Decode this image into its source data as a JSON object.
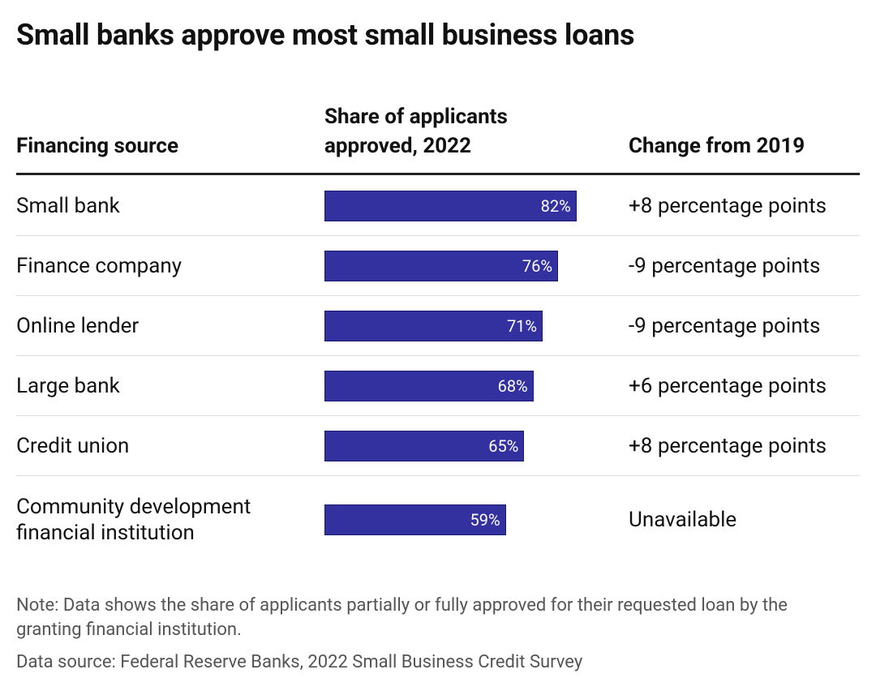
{
  "chart_data": {
    "type": "bar",
    "title": "Small banks approve most small business loans",
    "columns": [
      "Financing source",
      "Share of applicants approved, 2022",
      "Change from 2019"
    ],
    "categories": [
      "Small bank",
      "Finance company",
      "Online lender",
      "Large bank",
      "Credit union",
      "Community development financial institution"
    ],
    "values": [
      82,
      76,
      71,
      68,
      65,
      59
    ],
    "value_labels": [
      "82%",
      "76%",
      "71%",
      "68%",
      "65%",
      "59%"
    ],
    "change": [
      "+8 percentage points",
      "-9 percentage points",
      "-9 percentage points",
      "+6 percentage points",
      "+8 percentage points",
      "Unavailable"
    ],
    "color": "#3330a0",
    "note": "Note: Data shows the share of applicants partially or fully approved for their requested loan by the granting financial institution.",
    "source": "Data source: Federal Reserve Banks, 2022 Small Business Credit Survey"
  }
}
